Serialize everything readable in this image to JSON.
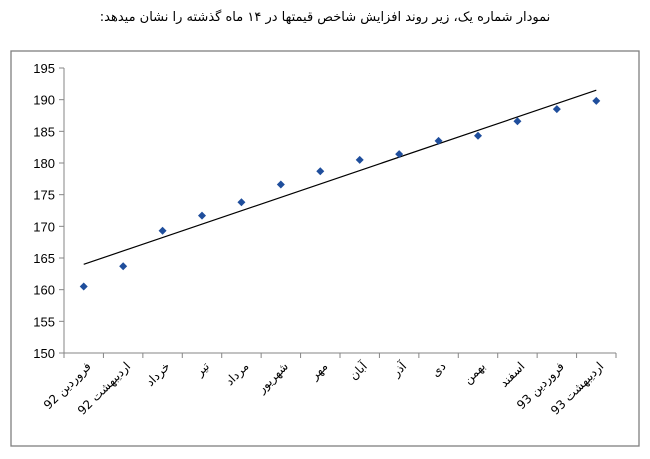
{
  "title": "نمودار شماره یک، زیر روند افزایش شاخص قیمتها در  ۱۴ ماه گذشته را نشان میدهد:",
  "chart_data": {
    "type": "scatter",
    "title": "",
    "xlabel": "",
    "ylabel": "",
    "categories": [
      "فروردین 92",
      "اردیبهشت 92",
      "خرداد",
      "تیر",
      "مرداد",
      "شهریور",
      "مهر",
      "آبان",
      "آذر",
      "دی",
      "بهمن",
      "اسفند",
      "فروردین 93",
      "اردیبهشت 93"
    ],
    "values": [
      160.5,
      163.7,
      169.3,
      171.7,
      173.8,
      176.6,
      178.7,
      180.5,
      181.4,
      183.5,
      184.3,
      186.6,
      188.5,
      189.8
    ],
    "trendline": {
      "type": "linear",
      "start": 164.0,
      "end": 191.5
    },
    "ylim": [
      150,
      195
    ],
    "yticks": [
      150,
      155,
      160,
      165,
      170,
      175,
      180,
      185,
      190,
      195
    ],
    "grid": false,
    "legend": "none",
    "marker": "diamond",
    "marker_color": "#1F4E9C",
    "trend_color": "#000000"
  }
}
